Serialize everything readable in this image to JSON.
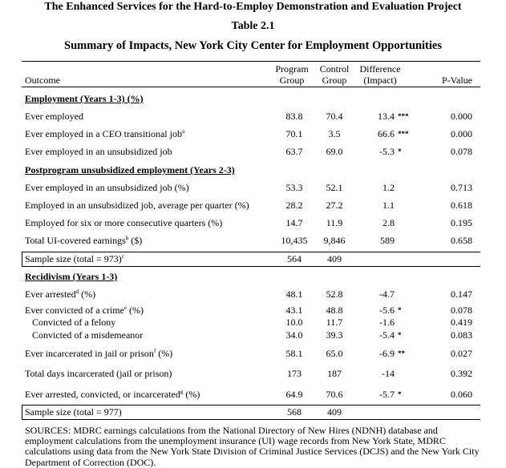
{
  "titles": {
    "line1": "The Enhanced Services for the Hard-to-Employ Demonstration and Evaluation Project",
    "line2": "Table 2.1",
    "line3": "Summary of Impacts, New York City Center for Employment Opportunities"
  },
  "columns": {
    "outcome": "Outcome",
    "program": [
      "Program",
      "Group"
    ],
    "control": [
      "Control",
      "Group"
    ],
    "difference": [
      "Difference",
      "(Impact)"
    ],
    "pvalue": "P-Value"
  },
  "rows": [
    {
      "type": "section",
      "label": "Employment (Years 1-3) (%)"
    },
    {
      "type": "data",
      "label": "Ever employed",
      "sup": "",
      "suffix": "",
      "program": "83.8",
      "control": "70.4",
      "diff": "13.4",
      "stars": "***",
      "p": "0.000"
    },
    {
      "type": "data",
      "label": "Ever employed in a CEO transitional job",
      "sup": "a",
      "suffix": "",
      "program": "70.1",
      "control": "3.5",
      "diff": "66.6",
      "stars": "***",
      "p": "0.000"
    },
    {
      "type": "data",
      "label": "Ever employed in an unsubsidized job",
      "sup": "",
      "suffix": "",
      "program": "63.7",
      "control": "69.0",
      "diff": "-5.3",
      "stars": "*",
      "p": "0.078"
    },
    {
      "type": "section",
      "label": "Postprogram unsubsidized employment  (Years 2-3)"
    },
    {
      "type": "data",
      "label": "Ever employed in an unsubsidized job (%)",
      "sup": "",
      "suffix": "",
      "program": "53.3",
      "control": "52.1",
      "diff": "1.2",
      "stars": "",
      "p": "0.713"
    },
    {
      "type": "data",
      "label": "Employed in an unsubsidized job, average per quarter (%)",
      "sup": "",
      "suffix": "",
      "program": "28.2",
      "control": "27.2",
      "diff": "1.1",
      "stars": "",
      "p": "0.618"
    },
    {
      "type": "data",
      "label": "Employed for six or more consecutive quarters (%)",
      "sup": "",
      "suffix": "",
      "program": "14.7",
      "control": "11.9",
      "diff": "2.8",
      "stars": "",
      "p": "0.195"
    },
    {
      "type": "data",
      "label": "Total UI-covered earnings",
      "sup": "b",
      "suffix": " ($)",
      "program": "10,435",
      "control": "9,846",
      "diff": "589",
      "stars": "",
      "p": "0.658"
    },
    {
      "type": "sample",
      "label": "Sample size (total = 973)",
      "sup": "c",
      "program": "564",
      "control": "409"
    },
    {
      "type": "section",
      "label": "Recidivism (Years 1-3)"
    },
    {
      "type": "data",
      "label": "Ever arrested",
      "sup": "d",
      "suffix": " (%)",
      "program": "48.1",
      "control": "52.8",
      "diff": "-4.7",
      "stars": "",
      "p": "0.147"
    },
    {
      "type": "data",
      "label": "Ever convicted of a crime",
      "sup": "e",
      "suffix": " (%)",
      "program": "43.1",
      "control": "48.8",
      "diff": "-5.6",
      "stars": "*",
      "p": "0.078"
    },
    {
      "type": "data",
      "label": "Convicted of a felony",
      "indent": true,
      "sup": "",
      "suffix": "",
      "program": "10.0",
      "control": "11.7",
      "diff": "-1.6",
      "stars": "",
      "p": "0.419"
    },
    {
      "type": "data",
      "label": "Convicted of a misdemeanor",
      "indent": true,
      "sup": "",
      "suffix": "",
      "program": "34.0",
      "control": "39.3",
      "diff": "-5.4",
      "stars": "*",
      "p": "0.083"
    },
    {
      "type": "data",
      "label": "Ever incarcerated in jail or prison",
      "sup": "f",
      "suffix": " (%)",
      "program": "58.1",
      "control": "65.0",
      "diff": "-6.9",
      "stars": "**",
      "p": "0.027"
    },
    {
      "type": "data",
      "label": "Total days incarcerated (jail or prison)",
      "sup": "",
      "suffix": "",
      "program": "173",
      "control": "187",
      "diff": "-14",
      "stars": "",
      "p": "0.392"
    },
    {
      "type": "data",
      "label": "Ever arrested, convicted, or incarcerated",
      "sup": "g",
      "suffix": " (%)",
      "program": "64.9",
      "control": "70.6",
      "diff": "-5.7",
      "stars": "*",
      "p": "0.060"
    },
    {
      "type": "sample",
      "label": "Sample size (total = 977)",
      "sup": "",
      "program": "568",
      "control": "409"
    }
  ],
  "sources": "SOURCES: MDRC earnings calculations from the National Directory of New Hires (NDNH) database and employment calculations from the unemployment insurance (UI) wage records from New York State, MDRC calculations using data from the New York State Division of Criminal Justice Services (DCJS) and the New York City Department of Correction (DOC)."
}
